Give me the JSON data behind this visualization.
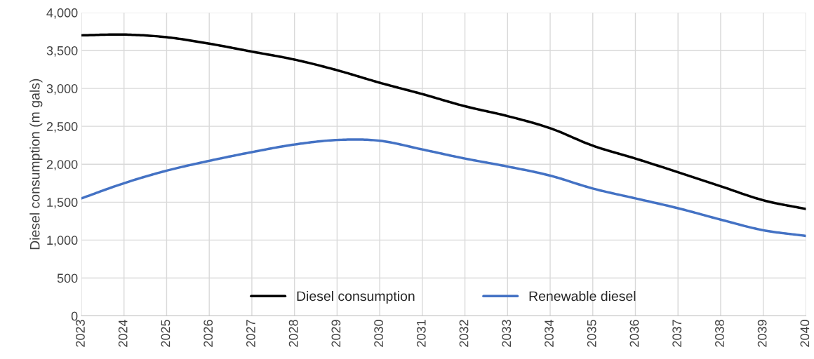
{
  "chart_data": {
    "type": "line",
    "ylabel": "Diesel consumption (m gals)",
    "categories": [
      "2023",
      "2024",
      "2025",
      "2026",
      "2027",
      "2028",
      "2029",
      "2030",
      "2031",
      "2032",
      "2033",
      "2034",
      "2035",
      "2036",
      "2037",
      "2038",
      "2039",
      "2040"
    ],
    "series": [
      {
        "name": "Diesel consumption",
        "color": "#000000",
        "values": [
          3700,
          3710,
          3675,
          3590,
          3485,
          3380,
          3240,
          3075,
          2925,
          2765,
          2635,
          2475,
          2245,
          2075,
          1895,
          1710,
          1525,
          1410
        ]
      },
      {
        "name": "Renewable diesel",
        "color": "#4472c4",
        "values": [
          1550,
          1750,
          1915,
          2045,
          2160,
          2260,
          2320,
          2310,
          2195,
          2075,
          1970,
          1850,
          1680,
          1550,
          1420,
          1270,
          1130,
          1055
        ]
      }
    ],
    "ylim": [
      0,
      4000
    ],
    "yticks": [
      {
        "value": 0,
        "label": "0"
      },
      {
        "value": 500,
        "label": "500"
      },
      {
        "value": 1000,
        "label": "1,000"
      },
      {
        "value": 1500,
        "label": "1,500"
      },
      {
        "value": 2000,
        "label": "2,000"
      },
      {
        "value": 2500,
        "label": "2,500"
      },
      {
        "value": 3000,
        "label": "3,000"
      },
      {
        "value": 3500,
        "label": "3,500"
      },
      {
        "value": 4000,
        "label": "4,000"
      }
    ],
    "grid": true,
    "legend": "bottom",
    "marker": "none",
    "line_style": "solid"
  }
}
